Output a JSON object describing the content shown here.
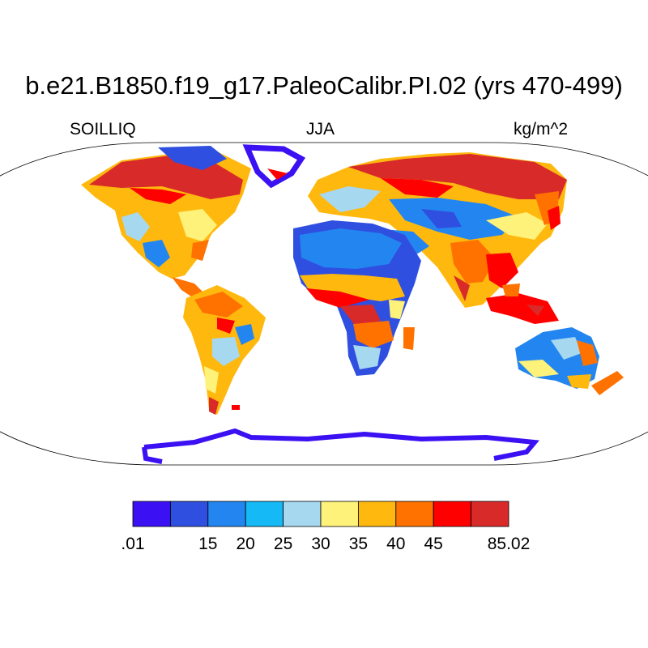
{
  "title": "b.e21.B1850.f19_g17.PaleoCalibr.PI.02 (yrs 470-499)",
  "left_label": "SOILLIQ",
  "center_label": "JJA",
  "right_label": "kg/m^2",
  "colorbar": {
    "colors": [
      "#3b10f2",
      "#2f4fe0",
      "#2386f0",
      "#14b9f5",
      "#a6d8f0",
      "#fff27a",
      "#ffb80e",
      "#ff7200",
      "#ff0000",
      "#d92a2a"
    ],
    "labels": [
      ".01",
      "15",
      "20",
      "25",
      "30",
      "35",
      "40",
      "45",
      "85.02"
    ]
  }
}
